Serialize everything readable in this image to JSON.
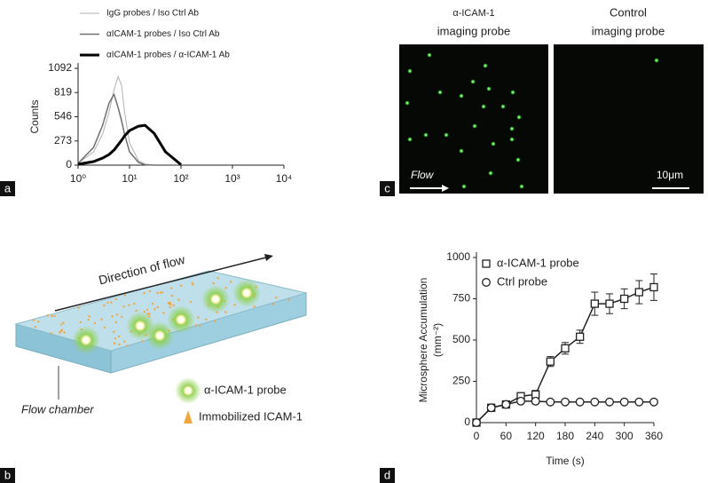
{
  "panel_labels": [
    "a",
    "b",
    "c",
    "d"
  ],
  "images": {
    "titles": [
      [
        "α-ICAM-1",
        "imaging probe"
      ],
      [
        "Control",
        "imaging probe"
      ]
    ],
    "flow": "Flow",
    "scale": "10μm"
  },
  "diagram": {
    "direction": "Direction of flow",
    "chamber": "Flow chamber",
    "probe": "α-ICAM-1 probe",
    "immobilized": "Immobilized ICAM-1"
  },
  "chart_data": [
    {
      "type": "line",
      "y_label": [
        "Counts"
      ],
      "xscale": "log",
      "x": [
        1,
        2,
        3,
        4,
        5,
        6,
        7,
        8,
        10,
        15,
        20,
        30,
        50,
        100
      ],
      "xlim": [
        1,
        10000
      ],
      "xticks": [
        {
          "value": 1,
          "label": "10⁰"
        },
        {
          "value": 10,
          "label": "10¹"
        },
        {
          "value": 100,
          "label": "10²"
        },
        {
          "value": 1000,
          "label": "10³"
        },
        {
          "value": 10000,
          "label": "10⁴"
        }
      ],
      "ylim": [
        0,
        1092
      ],
      "yticks": [
        0,
        273,
        546,
        819,
        1092
      ],
      "series": [
        {
          "name": "IgG probes / Iso Ctrl Ab",
          "color": "#b0b0b0",
          "line_width": 1,
          "values": [
            20,
            150,
            350,
            600,
            850,
            1000,
            900,
            600,
            250,
            50,
            10,
            0,
            0,
            0
          ]
        },
        {
          "name": "αICAM-1 probes / Iso Ctrl Ab",
          "color": "#707070",
          "line_width": 1.5,
          "values": [
            20,
            200,
            450,
            700,
            800,
            650,
            500,
            350,
            150,
            30,
            5,
            0,
            0,
            0
          ]
        },
        {
          "name": "αICAM-1 probes / α-ICAM-1 Ab",
          "color": "#000000",
          "line_width": 3,
          "values": [
            10,
            40,
            80,
            120,
            170,
            230,
            280,
            330,
            390,
            440,
            450,
            360,
            150,
            5
          ]
        }
      ]
    },
    {
      "type": "line",
      "y_label": [
        "Microsphere Accumulation",
        "(mm⁻²)"
      ],
      "x_label": "Time (s)",
      "x": [
        0,
        30,
        60,
        90,
        120,
        150,
        180,
        210,
        240,
        270,
        300,
        330,
        360
      ],
      "xlim": [
        0,
        360
      ],
      "xticks": [
        0,
        60,
        120,
        180,
        240,
        300,
        360
      ],
      "ylim": [
        0,
        1000
      ],
      "yticks": [
        0,
        250,
        500,
        750,
        1000
      ],
      "series": [
        {
          "name": "α-ICAM-1 probe",
          "color": "#222222",
          "line_width": 1.5,
          "marker": "square",
          "values": [
            0,
            90,
            110,
            160,
            170,
            370,
            450,
            520,
            720,
            720,
            750,
            790,
            820
          ],
          "errors": [
            10,
            20,
            20,
            20,
            25,
            30,
            35,
            40,
            70,
            60,
            60,
            70,
            80
          ]
        },
        {
          "name": "Ctrl probe",
          "color": "#222222",
          "line_width": 1.5,
          "marker": "circle",
          "values": [
            0,
            90,
            110,
            130,
            130,
            125,
            125,
            125,
            125,
            125,
            125,
            125,
            125
          ],
          "errors": [
            10,
            15,
            15,
            15,
            15,
            10,
            10,
            10,
            10,
            10,
            10,
            10,
            10
          ]
        }
      ]
    }
  ]
}
